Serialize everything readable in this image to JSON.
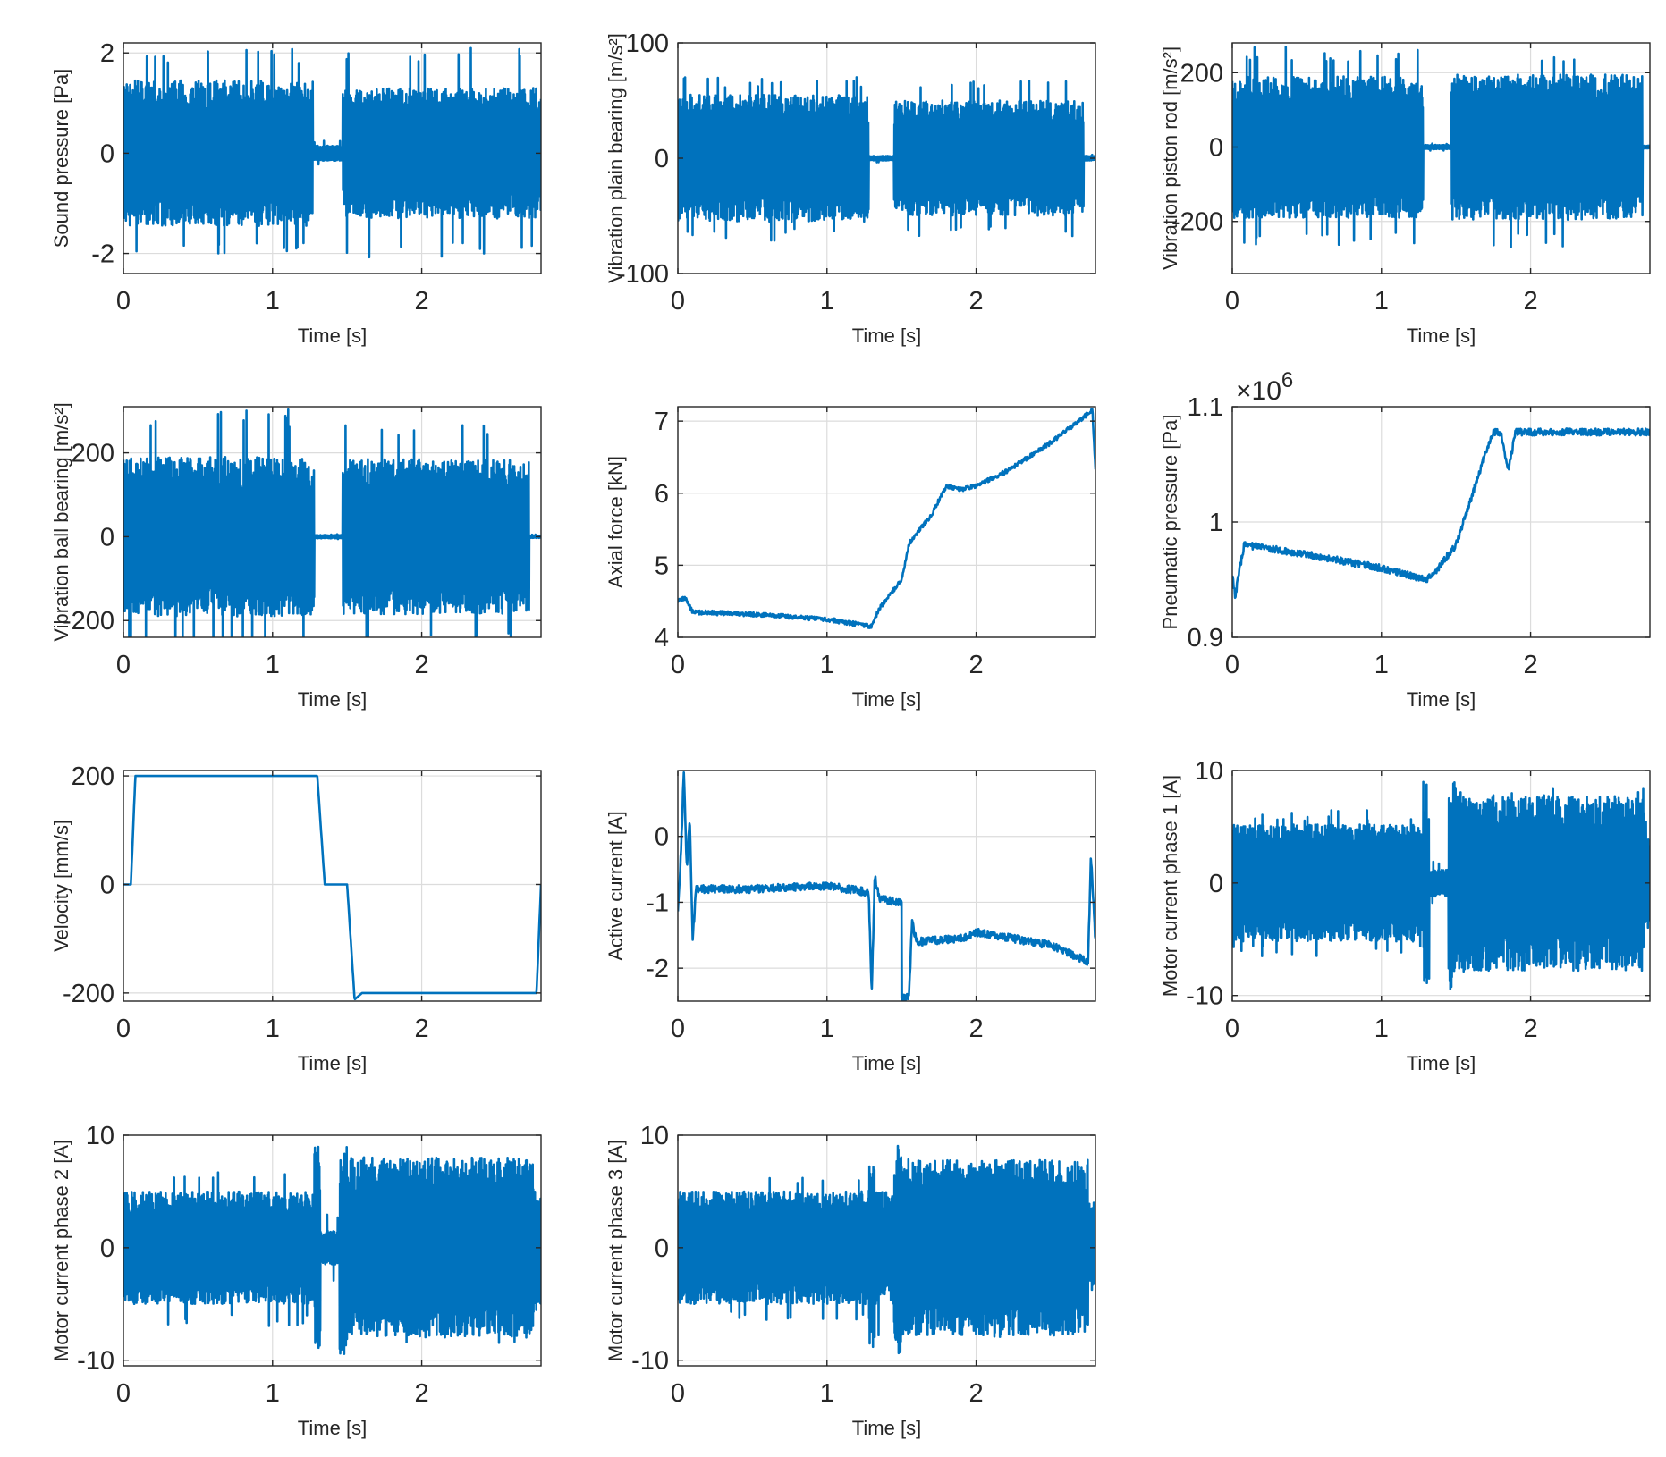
{
  "figure": {
    "line_color": "#0072BD",
    "axes_color": "#262626",
    "grid_color": "#dcdcdc"
  },
  "chart_data": [
    {
      "type": "line",
      "xlabel": "Time [s]",
      "ylabel": "Sound pressure [Pa]",
      "xlim": [
        0,
        2.8
      ],
      "ylim": [
        -2.4,
        2.2
      ],
      "xticks": [
        0,
        1,
        2
      ],
      "yticks": [
        -2,
        0,
        2
      ],
      "grid": true,
      "signal": "noise",
      "segments": [
        {
          "x0": 0.0,
          "x1": 1.27,
          "amp": 1.45,
          "spike": 2.1
        },
        {
          "x0": 1.27,
          "x1": 1.47,
          "amp": 0.15,
          "spike": 0.25
        },
        {
          "x0": 1.47,
          "x1": 2.8,
          "amp": 1.3,
          "spike": 2.1
        }
      ]
    },
    {
      "type": "line",
      "xlabel": "Time [s]",
      "ylabel": "Vibration plain bearing [m/s²]",
      "xlim": [
        0,
        2.8
      ],
      "ylim": [
        -100,
        100
      ],
      "xticks": [
        0,
        1,
        2
      ],
      "yticks": [
        -100,
        0,
        100
      ],
      "grid": true,
      "signal": "noise",
      "segments": [
        {
          "x0": 0.0,
          "x1": 1.28,
          "amp": 55,
          "spike": 72
        },
        {
          "x0": 1.28,
          "x1": 1.45,
          "amp": 2,
          "spike": 4
        },
        {
          "x0": 1.45,
          "x1": 2.72,
          "amp": 50,
          "spike": 68
        },
        {
          "x0": 2.72,
          "x1": 2.8,
          "amp": 2,
          "spike": 3
        }
      ]
    },
    {
      "type": "line",
      "xlabel": "Time [s]",
      "ylabel": "Vibration piston rod [m/s²]",
      "xlim": [
        0,
        2.8
      ],
      "ylim": [
        -340,
        280
      ],
      "xticks": [
        0,
        1,
        2
      ],
      "yticks": [
        -200,
        0,
        200
      ],
      "grid": true,
      "signal": "noise",
      "segments": [
        {
          "x0": 0.0,
          "x1": 1.28,
          "amp": 190,
          "spike": 270
        },
        {
          "x0": 1.28,
          "x1": 1.47,
          "amp": 6,
          "spike": 10
        },
        {
          "x0": 1.47,
          "x1": 2.75,
          "amp": 195,
          "spike": 270
        },
        {
          "x0": 2.75,
          "x1": 2.8,
          "amp": 4,
          "spike": 6
        }
      ]
    },
    {
      "type": "line",
      "xlabel": "Time [s]",
      "ylabel": "Vibration ball bearing [m/s²]",
      "xlim": [
        0,
        2.8
      ],
      "ylim": [
        -240,
        310
      ],
      "xticks": [
        0,
        1,
        2
      ],
      "yticks": [
        -200,
        0,
        200
      ],
      "grid": true,
      "signal": "noise",
      "segments": [
        {
          "x0": 0.0,
          "x1": 1.28,
          "amp": 190,
          "spike": 305
        },
        {
          "x0": 1.28,
          "x1": 1.47,
          "amp": 4,
          "spike": 6
        },
        {
          "x0": 1.47,
          "x1": 2.72,
          "amp": 185,
          "spike": 270
        },
        {
          "x0": 2.72,
          "x1": 2.8,
          "amp": 3,
          "spike": 5
        }
      ]
    },
    {
      "type": "line",
      "xlabel": "Time [s]",
      "ylabel": "Axial force [kN]",
      "xlim": [
        0,
        2.8
      ],
      "ylim": [
        4,
        7.2
      ],
      "xticks": [
        0,
        1,
        2
      ],
      "yticks": [
        4,
        5,
        6,
        7
      ],
      "grid": true,
      "signal": "trend",
      "noise": 0.03,
      "points": [
        [
          0,
          4.5
        ],
        [
          0.05,
          4.55
        ],
        [
          0.1,
          4.35
        ],
        [
          0.5,
          4.32
        ],
        [
          1.0,
          4.25
        ],
        [
          1.3,
          4.15
        ],
        [
          1.35,
          4.4
        ],
        [
          1.5,
          4.8
        ],
        [
          1.55,
          5.3
        ],
        [
          1.7,
          5.7
        ],
        [
          1.8,
          6.1
        ],
        [
          1.9,
          6.05
        ],
        [
          2.0,
          6.1
        ],
        [
          2.2,
          6.3
        ],
        [
          2.5,
          6.7
        ],
        [
          2.78,
          7.15
        ],
        [
          2.8,
          6.3
        ]
      ]
    },
    {
      "type": "line",
      "xlabel": "Time [s]",
      "ylabel": "Pneumatic pressure [Pa]",
      "exponent_label": "×10",
      "exponent_power": "6",
      "xlim": [
        0,
        2.8
      ],
      "ylim": [
        0.9,
        1.1
      ],
      "xticks": [
        0,
        1,
        2
      ],
      "yticks": [
        0.9,
        1,
        1.1
      ],
      "ytick_labels": [
        "0.9",
        "1",
        "1.1"
      ],
      "grid": true,
      "signal": "trend",
      "noise": 0.003,
      "points": [
        [
          0,
          0.955
        ],
        [
          0.02,
          0.935
        ],
        [
          0.05,
          0.96
        ],
        [
          0.08,
          0.98
        ],
        [
          0.2,
          0.978
        ],
        [
          0.5,
          0.972
        ],
        [
          1.0,
          0.96
        ],
        [
          1.3,
          0.95
        ],
        [
          1.35,
          0.955
        ],
        [
          1.5,
          0.98
        ],
        [
          1.6,
          1.02
        ],
        [
          1.7,
          1.06
        ],
        [
          1.75,
          1.078
        ],
        [
          1.8,
          1.078
        ],
        [
          1.85,
          1.045
        ],
        [
          1.9,
          1.078
        ],
        [
          2.8,
          1.078
        ]
      ]
    },
    {
      "type": "line",
      "xlabel": "Time [s]",
      "ylabel": "Velocity [mm/s]",
      "xlim": [
        0,
        2.8
      ],
      "ylim": [
        -215,
        210
      ],
      "xticks": [
        0,
        1,
        2
      ],
      "yticks": [
        -200,
        0,
        200
      ],
      "grid": true,
      "signal": "trend",
      "noise": 0,
      "points": [
        [
          0,
          0
        ],
        [
          0.05,
          0
        ],
        [
          0.08,
          200
        ],
        [
          1.3,
          200
        ],
        [
          1.35,
          0
        ],
        [
          1.5,
          0
        ],
        [
          1.55,
          -212
        ],
        [
          1.6,
          -200
        ],
        [
          2.77,
          -200
        ],
        [
          2.8,
          0
        ]
      ]
    },
    {
      "type": "line",
      "xlabel": "Time [s]",
      "ylabel": "Active current [A]",
      "xlim": [
        0,
        2.8
      ],
      "ylim": [
        -2.5,
        1.0
      ],
      "xticks": [
        0,
        1,
        2
      ],
      "yticks": [
        -2,
        -1,
        0
      ],
      "grid": true,
      "signal": "trend",
      "noise": 0.06,
      "points": [
        [
          0,
          -1.1
        ],
        [
          0.02,
          -0.3
        ],
        [
          0.04,
          1.0
        ],
        [
          0.06,
          -0.5
        ],
        [
          0.08,
          0.3
        ],
        [
          0.1,
          -1.6
        ],
        [
          0.12,
          -0.8
        ],
        [
          0.5,
          -0.8
        ],
        [
          1.0,
          -0.75
        ],
        [
          1.28,
          -0.85
        ],
        [
          1.3,
          -2.4
        ],
        [
          1.32,
          -0.6
        ],
        [
          1.35,
          -0.95
        ],
        [
          1.5,
          -1.0
        ],
        [
          1.5,
          -2.45
        ],
        [
          1.55,
          -2.45
        ],
        [
          1.57,
          -1.3
        ],
        [
          1.6,
          -1.6
        ],
        [
          1.9,
          -1.55
        ],
        [
          2.0,
          -1.45
        ],
        [
          2.5,
          -1.65
        ],
        [
          2.75,
          -1.9
        ],
        [
          2.77,
          -0.3
        ],
        [
          2.8,
          -1.6
        ]
      ]
    },
    {
      "type": "line",
      "xlabel": "Time [s]",
      "ylabel": "Motor current phase 1 [A]",
      "xlim": [
        0,
        2.8
      ],
      "ylim": [
        -10.5,
        10
      ],
      "xticks": [
        0,
        1,
        2
      ],
      "yticks": [
        -10,
        0,
        10
      ],
      "grid": true,
      "signal": "noise",
      "segments": [
        {
          "x0": 0.0,
          "x1": 1.28,
          "amp": 5.2,
          "spike": 6.5
        },
        {
          "x0": 1.28,
          "x1": 1.32,
          "amp": 9.0,
          "spike": 9.5
        },
        {
          "x0": 1.32,
          "x1": 1.45,
          "amp": 1.2,
          "spike": 2.0
        },
        {
          "x0": 1.45,
          "x1": 1.5,
          "amp": 9.5,
          "spike": 10.2
        },
        {
          "x0": 1.5,
          "x1": 2.76,
          "amp": 7.8,
          "spike": 8.5
        },
        {
          "x0": 2.76,
          "x1": 2.8,
          "amp": 4.0,
          "spike": 6.0
        }
      ]
    },
    {
      "type": "line",
      "xlabel": "Time [s]",
      "ylabel": "Motor current phase 2 [A]",
      "xlim": [
        0,
        2.8
      ],
      "ylim": [
        -10.5,
        10
      ],
      "xticks": [
        0,
        1,
        2
      ],
      "yticks": [
        -10,
        0,
        10
      ],
      "grid": true,
      "signal": "noise",
      "segments": [
        {
          "x0": 0.0,
          "x1": 1.28,
          "amp": 5.0,
          "spike": 7.0
        },
        {
          "x0": 1.28,
          "x1": 1.32,
          "amp": 9.0,
          "spike": 9.5
        },
        {
          "x0": 1.32,
          "x1": 1.45,
          "amp": 1.5,
          "spike": 3.0
        },
        {
          "x0": 1.45,
          "x1": 1.5,
          "amp": 9.5,
          "spike": 10.0
        },
        {
          "x0": 1.5,
          "x1": 2.75,
          "amp": 8.0,
          "spike": 8.5
        },
        {
          "x0": 2.75,
          "x1": 2.8,
          "amp": 5.0,
          "spike": 6.0
        }
      ]
    },
    {
      "type": "line",
      "xlabel": "Time [s]",
      "ylabel": "Motor current phase 3 [A]",
      "xlim": [
        0,
        2.8
      ],
      "ylim": [
        -10.5,
        10
      ],
      "xticks": [
        0,
        1,
        2
      ],
      "yticks": [
        -10,
        0,
        10
      ],
      "grid": true,
      "signal": "noise",
      "segments": [
        {
          "x0": 0.0,
          "x1": 1.28,
          "amp": 5.0,
          "spike": 6.5
        },
        {
          "x0": 1.28,
          "x1": 1.32,
          "amp": 9.0,
          "spike": 9.5
        },
        {
          "x0": 1.32,
          "x1": 1.45,
          "amp": 5.0,
          "spike": 9.0
        },
        {
          "x0": 1.45,
          "x1": 1.5,
          "amp": 9.5,
          "spike": 10.0
        },
        {
          "x0": 1.5,
          "x1": 2.75,
          "amp": 7.8,
          "spike": 8.0
        },
        {
          "x0": 2.75,
          "x1": 2.8,
          "amp": 4.0,
          "spike": 6.0
        }
      ]
    }
  ]
}
